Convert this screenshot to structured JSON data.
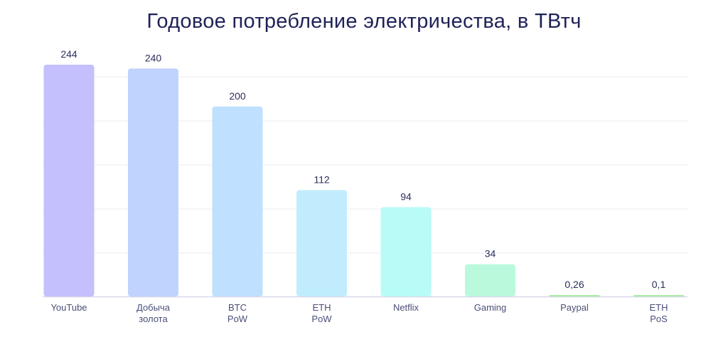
{
  "chart_data": {
    "type": "bar",
    "title": "Годовое потребление электричества, в ТВтч",
    "categories": [
      [
        "YouTube"
      ],
      [
        "Добыча",
        "золота"
      ],
      [
        "BTC",
        "PoW"
      ],
      [
        "ETH",
        "PoW"
      ],
      [
        "Netflix"
      ],
      [
        "Gaming"
      ],
      [
        "Paypal"
      ],
      [
        "ETH",
        "PoS"
      ]
    ],
    "values": [
      244,
      240,
      200,
      112,
      94,
      34,
      0.26,
      0.1
    ],
    "value_labels": [
      "244",
      "240",
      "200",
      "112",
      "94",
      "34",
      "0,26",
      "0,1"
    ],
    "colors": [
      "#c4bffd",
      "#c0d3fe",
      "#bfe0fe",
      "#c1ecfe",
      "#b9fbf6",
      "#bbf9dd",
      "#a6eea0",
      "#a6eea0"
    ],
    "ylim": [
      0,
      244
    ],
    "grid": true,
    "xlabel": "",
    "ylabel": ""
  }
}
